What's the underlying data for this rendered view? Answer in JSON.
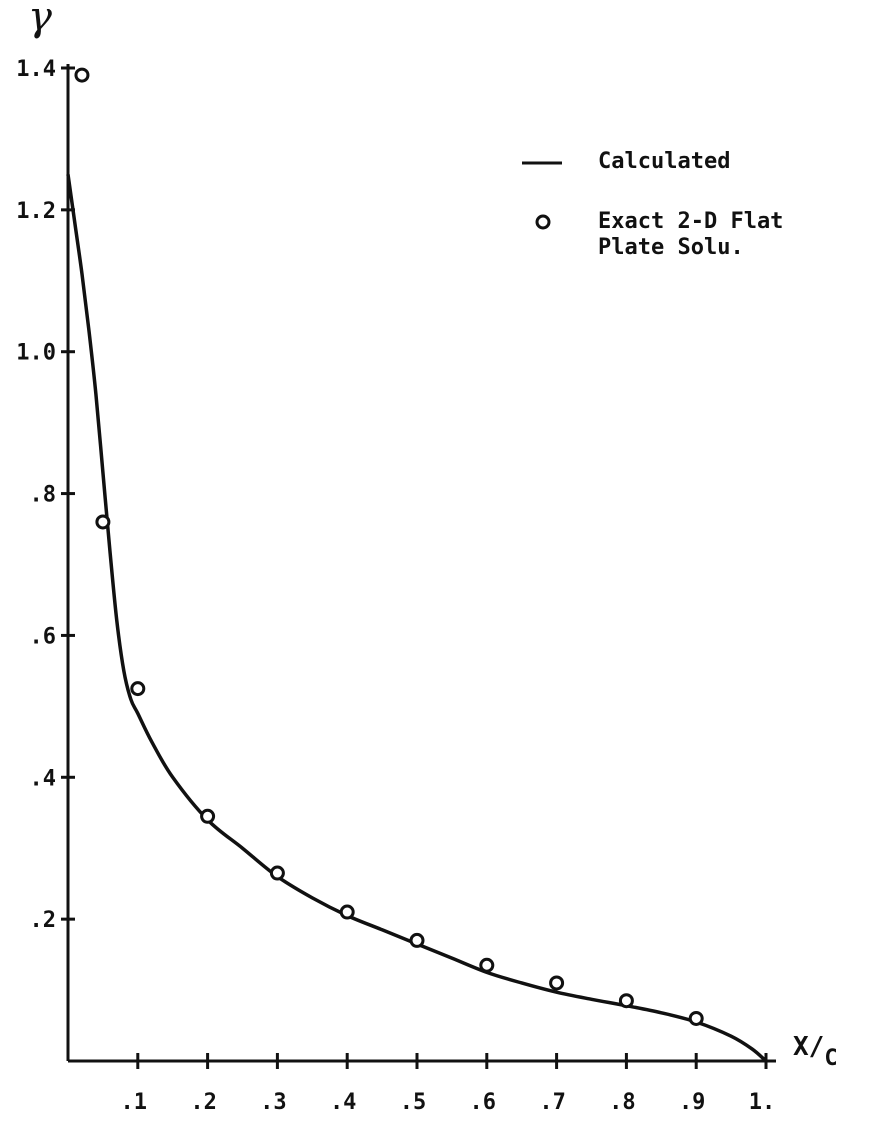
{
  "chart_data": {
    "type": "line",
    "ylabel": "γ",
    "xlabel": "X/C",
    "xlim": [
      0,
      1.0
    ],
    "ylim": [
      0,
      1.4
    ],
    "x_ticks": [
      {
        "value": 0.1,
        "label": ".1"
      },
      {
        "value": 0.2,
        "label": ".2"
      },
      {
        "value": 0.3,
        "label": ".3"
      },
      {
        "value": 0.4,
        "label": ".4"
      },
      {
        "value": 0.5,
        "label": ".5"
      },
      {
        "value": 0.6,
        "label": ".6"
      },
      {
        "value": 0.7,
        "label": ".7"
      },
      {
        "value": 0.8,
        "label": ".8"
      },
      {
        "value": 0.9,
        "label": ".9"
      },
      {
        "value": 1.0,
        "label": "1."
      }
    ],
    "y_ticks": [
      {
        "value": 0.2,
        "label": ".2"
      },
      {
        "value": 0.4,
        "label": ".4"
      },
      {
        "value": 0.6,
        "label": ".6"
      },
      {
        "value": 0.8,
        "label": ".8"
      },
      {
        "value": 1.0,
        "label": "1.0"
      },
      {
        "value": 1.2,
        "label": "1.2"
      },
      {
        "value": 1.4,
        "label": "1.4"
      }
    ],
    "grid": false,
    "legend": {
      "placement": "top-right",
      "entries": [
        {
          "marker": "line",
          "label": "Calculated"
        },
        {
          "marker": "circle",
          "label": "Exact 2-D Flat\nPlate Solu."
        }
      ]
    },
    "series": [
      {
        "name": "Calculated",
        "style": "line",
        "x": [
          0.0,
          0.01,
          0.02,
          0.03,
          0.04,
          0.05,
          0.06,
          0.07,
          0.08,
          0.09,
          0.1,
          0.12,
          0.15,
          0.2,
          0.25,
          0.3,
          0.35,
          0.4,
          0.45,
          0.5,
          0.55,
          0.6,
          0.65,
          0.7,
          0.75,
          0.8,
          0.85,
          0.9,
          0.95,
          0.98,
          1.0
        ],
        "y": [
          1.25,
          1.18,
          1.11,
          1.03,
          0.94,
          0.83,
          0.72,
          0.62,
          0.55,
          0.51,
          0.49,
          0.45,
          0.4,
          0.34,
          0.3,
          0.26,
          0.23,
          0.205,
          0.185,
          0.165,
          0.145,
          0.125,
          0.11,
          0.097,
          0.087,
          0.078,
          0.068,
          0.055,
          0.035,
          0.017,
          0.0
        ]
      },
      {
        "name": "Exact 2-D Flat Plate Solu.",
        "style": "circle",
        "x": [
          0.02,
          0.05,
          0.1,
          0.2,
          0.3,
          0.4,
          0.5,
          0.6,
          0.7,
          0.8,
          0.9
        ],
        "y": [
          1.39,
          0.76,
          0.525,
          0.345,
          0.265,
          0.21,
          0.17,
          0.135,
          0.11,
          0.085,
          0.06
        ]
      }
    ]
  }
}
